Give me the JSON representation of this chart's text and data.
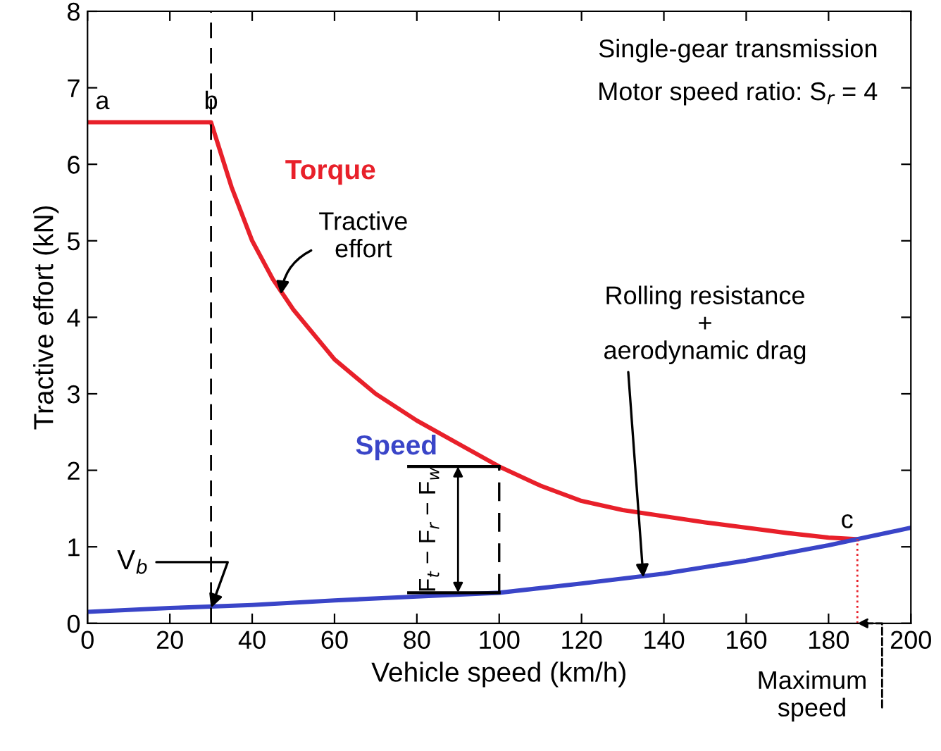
{
  "chart_data": {
    "type": "line",
    "xlabel": "Vehicle speed (km/h)",
    "ylabel": "Tractive effort (kN)",
    "xlim": [
      0,
      200
    ],
    "ylim": [
      0,
      8
    ],
    "xticks": [
      0,
      20,
      40,
      60,
      80,
      100,
      120,
      140,
      160,
      180,
      200
    ],
    "yticks": [
      0,
      1,
      2,
      3,
      4,
      5,
      6,
      7,
      8
    ],
    "grid": false,
    "legend": false,
    "marker": "none",
    "line_style": "solid",
    "series": [
      {
        "name": "Torque",
        "color": "#e8202a",
        "x": [
          0,
          30,
          35,
          40,
          45,
          50,
          60,
          70,
          80,
          90,
          100,
          110,
          120,
          130,
          140,
          150,
          160,
          170,
          180,
          187
        ],
        "values": [
          6.55,
          6.55,
          5.7,
          5.0,
          4.5,
          4.1,
          3.45,
          3.0,
          2.65,
          2.35,
          2.05,
          1.8,
          1.6,
          1.48,
          1.4,
          1.32,
          1.25,
          1.18,
          1.12,
          1.1
        ]
      },
      {
        "name": "Speed",
        "color": "#3a45c8",
        "x": [
          0,
          20,
          40,
          60,
          80,
          100,
          120,
          140,
          160,
          180,
          187,
          200
        ],
        "values": [
          0.15,
          0.2,
          0.24,
          0.3,
          0.35,
          0.4,
          0.52,
          0.65,
          0.82,
          1.02,
          1.1,
          1.25
        ]
      }
    ],
    "ref_lines": [
      {
        "axis": "x",
        "value": 30,
        "line_style": "dashed",
        "color": "#000000"
      }
    ],
    "annotations": [
      "Single-gear transmission",
      "Motor speed ratio: S$_{r}$ = 4",
      {
        "text": "a",
        "x": 0,
        "y": 6.55
      },
      {
        "text": "b",
        "x": 30,
        "y": 6.55
      },
      {
        "text": "c",
        "x": 187,
        "y": 1.1
      },
      {
        "text": "Tractive\neffort",
        "x": 47,
        "y": 4.3
      },
      {
        "text": "Rolling resistance\n+\naerodynamic drag",
        "x": 135,
        "y": 0.6
      },
      {
        "text": "V$_{b}$",
        "x": 30,
        "y": 0.2
      },
      "Maximum\nspeed",
      {
        "text": "F$_{t}$ − F$_{r}$ − F$_{w}$",
        "x": 100,
        "y": 2.05
      }
    ]
  }
}
